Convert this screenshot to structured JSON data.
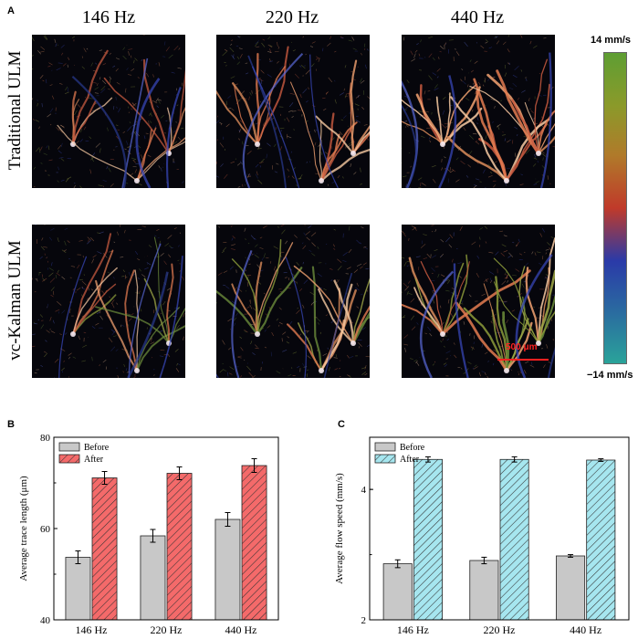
{
  "panel_a": {
    "letter": "A",
    "frequencies": [
      "146 Hz",
      "220 Hz",
      "440 Hz"
    ],
    "rows": [
      "Traditional ULM",
      "vc-Kalman ULM"
    ],
    "colorbar": {
      "top_label": "14 mm/s",
      "bottom_label": "−14 mm/s",
      "colors": [
        "#5e9e33",
        "#8b9a2a",
        "#b07a2a",
        "#c03a2a",
        "#2a3aa8",
        "#2a6aa0",
        "#2aa39a"
      ]
    },
    "scale_bar": {
      "label": "500 μm",
      "color": "#ff2020"
    }
  },
  "panel_b": {
    "letter": "B"
  },
  "panel_c": {
    "letter": "C"
  },
  "chart_data": [
    {
      "type": "bar",
      "categories": [
        "146 Hz",
        "220 Hz",
        "440 Hz"
      ],
      "ylabel": "Average trace length (μm)",
      "ylim": [
        40,
        80
      ],
      "yticks": [
        40,
        60,
        80
      ],
      "legend_position": "top-left",
      "series": [
        {
          "name": "Before",
          "values": [
            53.7,
            58.4,
            62.0
          ],
          "errors": [
            1.4,
            1.4,
            1.5
          ],
          "color": "#c8c8c8",
          "hatch": false
        },
        {
          "name": "After",
          "values": [
            71.1,
            72.1,
            73.8
          ],
          "errors": [
            1.4,
            1.4,
            1.5
          ],
          "color": "#f46a6a",
          "hatch": true
        }
      ]
    },
    {
      "type": "bar",
      "categories": [
        "146 Hz",
        "220 Hz",
        "440 Hz"
      ],
      "ylabel": "Average flow speed (mm/s)",
      "ylim": [
        2,
        4.8
      ],
      "yticks": [
        2,
        4
      ],
      "legend_position": "top-left",
      "series": [
        {
          "name": "Before",
          "values": [
            2.86,
            2.91,
            2.98
          ],
          "errors": [
            0.06,
            0.05,
            0.02
          ],
          "color": "#c8c8c8",
          "hatch": false
        },
        {
          "name": "After",
          "values": [
            4.46,
            4.46,
            4.45
          ],
          "errors": [
            0.04,
            0.04,
            0.02
          ],
          "color": "#a6e6ef",
          "hatch": true
        }
      ]
    }
  ]
}
